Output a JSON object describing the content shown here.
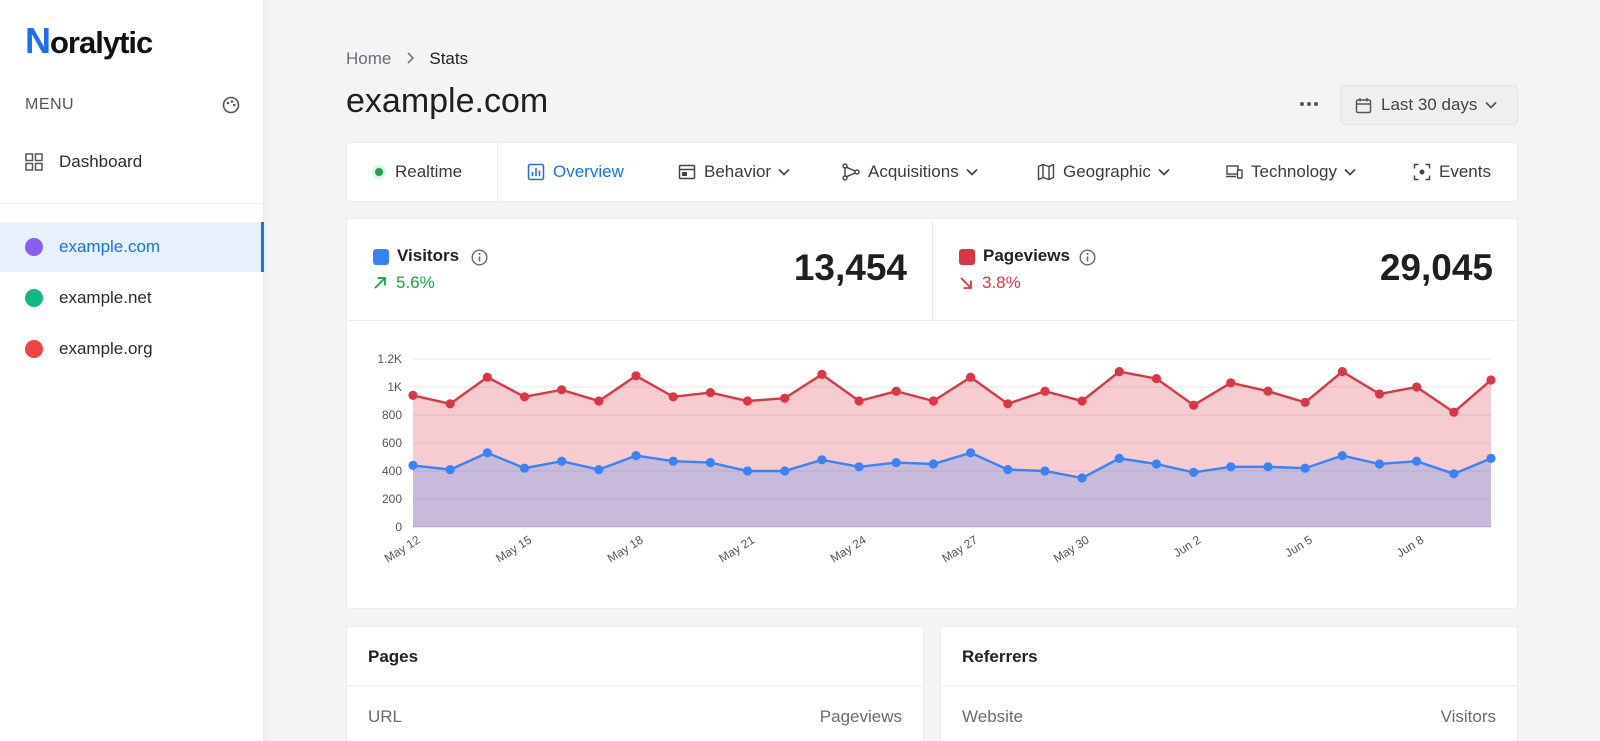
{
  "app": {
    "logo_initial": "N",
    "logo_rest": "oralytic"
  },
  "sidebar": {
    "menu_title": "MENU",
    "dashboard_label": "Dashboard",
    "sites": [
      {
        "label": "example.com",
        "color": "#8b5cf6"
      },
      {
        "label": "example.net",
        "color": "#10b981"
      },
      {
        "label": "example.org",
        "color": "#ef4444"
      }
    ]
  },
  "breadcrumb": {
    "home": "Home",
    "current": "Stats"
  },
  "page": {
    "title": "example.com"
  },
  "toolbar": {
    "more": "•••",
    "date_range": "Last 30 days"
  },
  "tabs": {
    "realtime": "Realtime",
    "overview": "Overview",
    "behavior": "Behavior",
    "acquisitions": "Acquisitions",
    "geographic": "Geographic",
    "technology": "Technology",
    "events": "Events"
  },
  "metrics": {
    "visitors": {
      "label": "Visitors",
      "change": "5.6%",
      "value": "13,454",
      "color": "#3b82f6",
      "change_color": "#16a34a"
    },
    "pageviews": {
      "label": "Pageviews",
      "change": "3.8%",
      "value": "29,045",
      "color": "#dc3545",
      "change_color": "#dc3545"
    }
  },
  "chart_data": {
    "type": "area",
    "x": [
      "May 12",
      "May 13",
      "May 14",
      "May 15",
      "May 16",
      "May 17",
      "May 18",
      "May 19",
      "May 20",
      "May 21",
      "May 22",
      "May 23",
      "May 24",
      "May 25",
      "May 26",
      "May 27",
      "May 28",
      "May 29",
      "May 30",
      "May 31",
      "Jun 1",
      "Jun 2",
      "Jun 3",
      "Jun 4",
      "Jun 5",
      "Jun 6",
      "Jun 7",
      "Jun 8",
      "Jun 9",
      "Jun 10"
    ],
    "tick_labels": [
      "May 12",
      "May 15",
      "May 18",
      "May 21",
      "May 24",
      "May 27",
      "May 30",
      "Jun 2",
      "Jun 5",
      "Jun 8"
    ],
    "y_ticks": [
      "0",
      "200",
      "400",
      "600",
      "800",
      "1K",
      "1.2K"
    ],
    "ylim": [
      0,
      1200
    ],
    "series": [
      {
        "name": "Pageviews",
        "color": "#dc3545",
        "values": [
          940,
          880,
          1070,
          930,
          980,
          900,
          1080,
          930,
          960,
          900,
          920,
          1090,
          900,
          970,
          900,
          1070,
          880,
          970,
          900,
          1110,
          1060,
          870,
          1030,
          970,
          890,
          1110,
          950,
          1000,
          820,
          1050
        ]
      },
      {
        "name": "Visitors",
        "color": "#3b82f6",
        "values": [
          440,
          410,
          530,
          420,
          470,
          410,
          510,
          470,
          460,
          400,
          400,
          480,
          430,
          460,
          450,
          530,
          410,
          400,
          350,
          490,
          450,
          390,
          430,
          430,
          420,
          510,
          450,
          470,
          380,
          490
        ]
      }
    ]
  },
  "panels": {
    "pages": {
      "title": "Pages",
      "col_left": "URL",
      "col_right": "Pageviews"
    },
    "referrers": {
      "title": "Referrers",
      "col_left": "Website",
      "col_right": "Visitors"
    }
  }
}
